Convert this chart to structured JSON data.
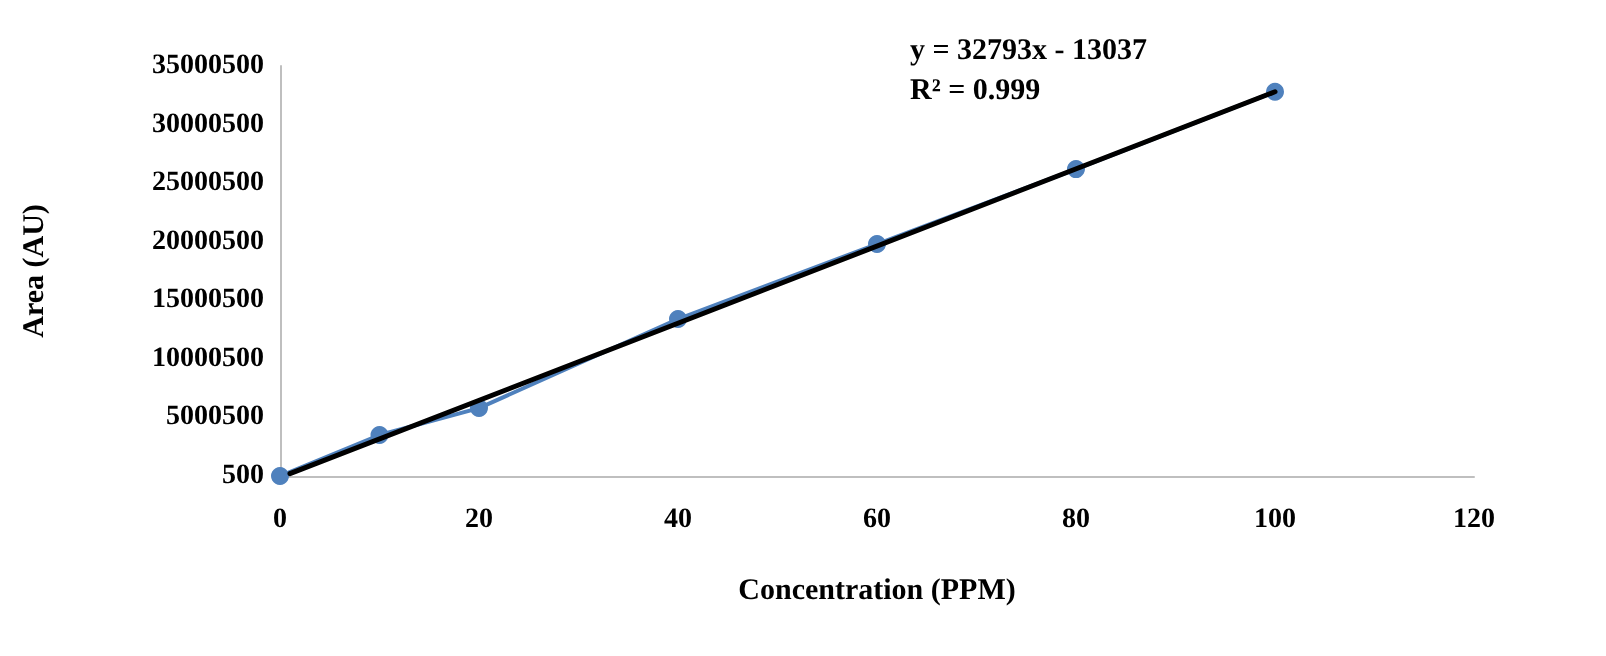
{
  "chart_data": {
    "type": "line",
    "xlabel": "Concentration (PPM)",
    "ylabel": "Area (AU)",
    "annotations": [
      "y = 32793x - 13037",
      "R² = 0.999"
    ],
    "xlim": [
      0,
      120
    ],
    "xticks": [
      0,
      20,
      40,
      60,
      80,
      100,
      120
    ],
    "ylim": [
      500,
      35000500
    ],
    "yticks": [
      500,
      5000500,
      10000500,
      15000500,
      20000500,
      25000500,
      30000500,
      35000500
    ],
    "grid": false,
    "marker": "circle",
    "line_style": "solid",
    "series": [
      {
        "color": "#4f81bd",
        "x": [
          0,
          10,
          20,
          40,
          60,
          80,
          100
        ],
        "values": [
          500,
          3500000,
          5800000,
          13400000,
          19800000,
          26200000,
          32800000
        ]
      },
      {
        "type": "line",
        "marker": "none",
        "color": "#000000",
        "x": [
          1,
          100
        ],
        "values": [
          200000,
          32800000
        ]
      }
    ]
  }
}
